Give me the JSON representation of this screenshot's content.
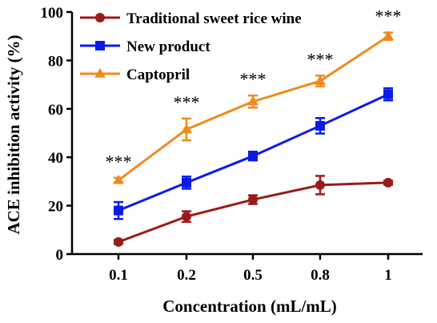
{
  "chart_data": {
    "type": "line",
    "title": "",
    "xlabel": "Concentration (mL/mL)",
    "ylabel": "ACE inhibition activity (%)",
    "categories": [
      "0.1",
      "0.2",
      "0.5",
      "0.8",
      "1"
    ],
    "ylim": [
      0,
      100
    ],
    "yticks": [
      0,
      20,
      40,
      60,
      80,
      100
    ],
    "grid": false,
    "legend_position": "top-left",
    "significance_marker": "***",
    "series": [
      {
        "name": "Traditional sweet rice wine",
        "color": "#9b1b1b",
        "marker": "circle",
        "values": [
          5,
          15.5,
          22.5,
          28.5,
          29.5
        ],
        "errors": [
          0.8,
          2.2,
          1.8,
          3.8,
          0.8
        ]
      },
      {
        "name": "New product",
        "color": "#0b1ae6",
        "marker": "square",
        "values": [
          18,
          29.5,
          40.5,
          53,
          66
        ],
        "errors": [
          3.5,
          2.5,
          1.8,
          3.2,
          2.5
        ]
      },
      {
        "name": "Captopril",
        "color": "#f08a1c",
        "marker": "triangle",
        "values": [
          30.5,
          51.5,
          63,
          71.5,
          90
        ],
        "errors": [
          1.0,
          4.5,
          2.5,
          2.2,
          1.5
        ]
      }
    ]
  }
}
